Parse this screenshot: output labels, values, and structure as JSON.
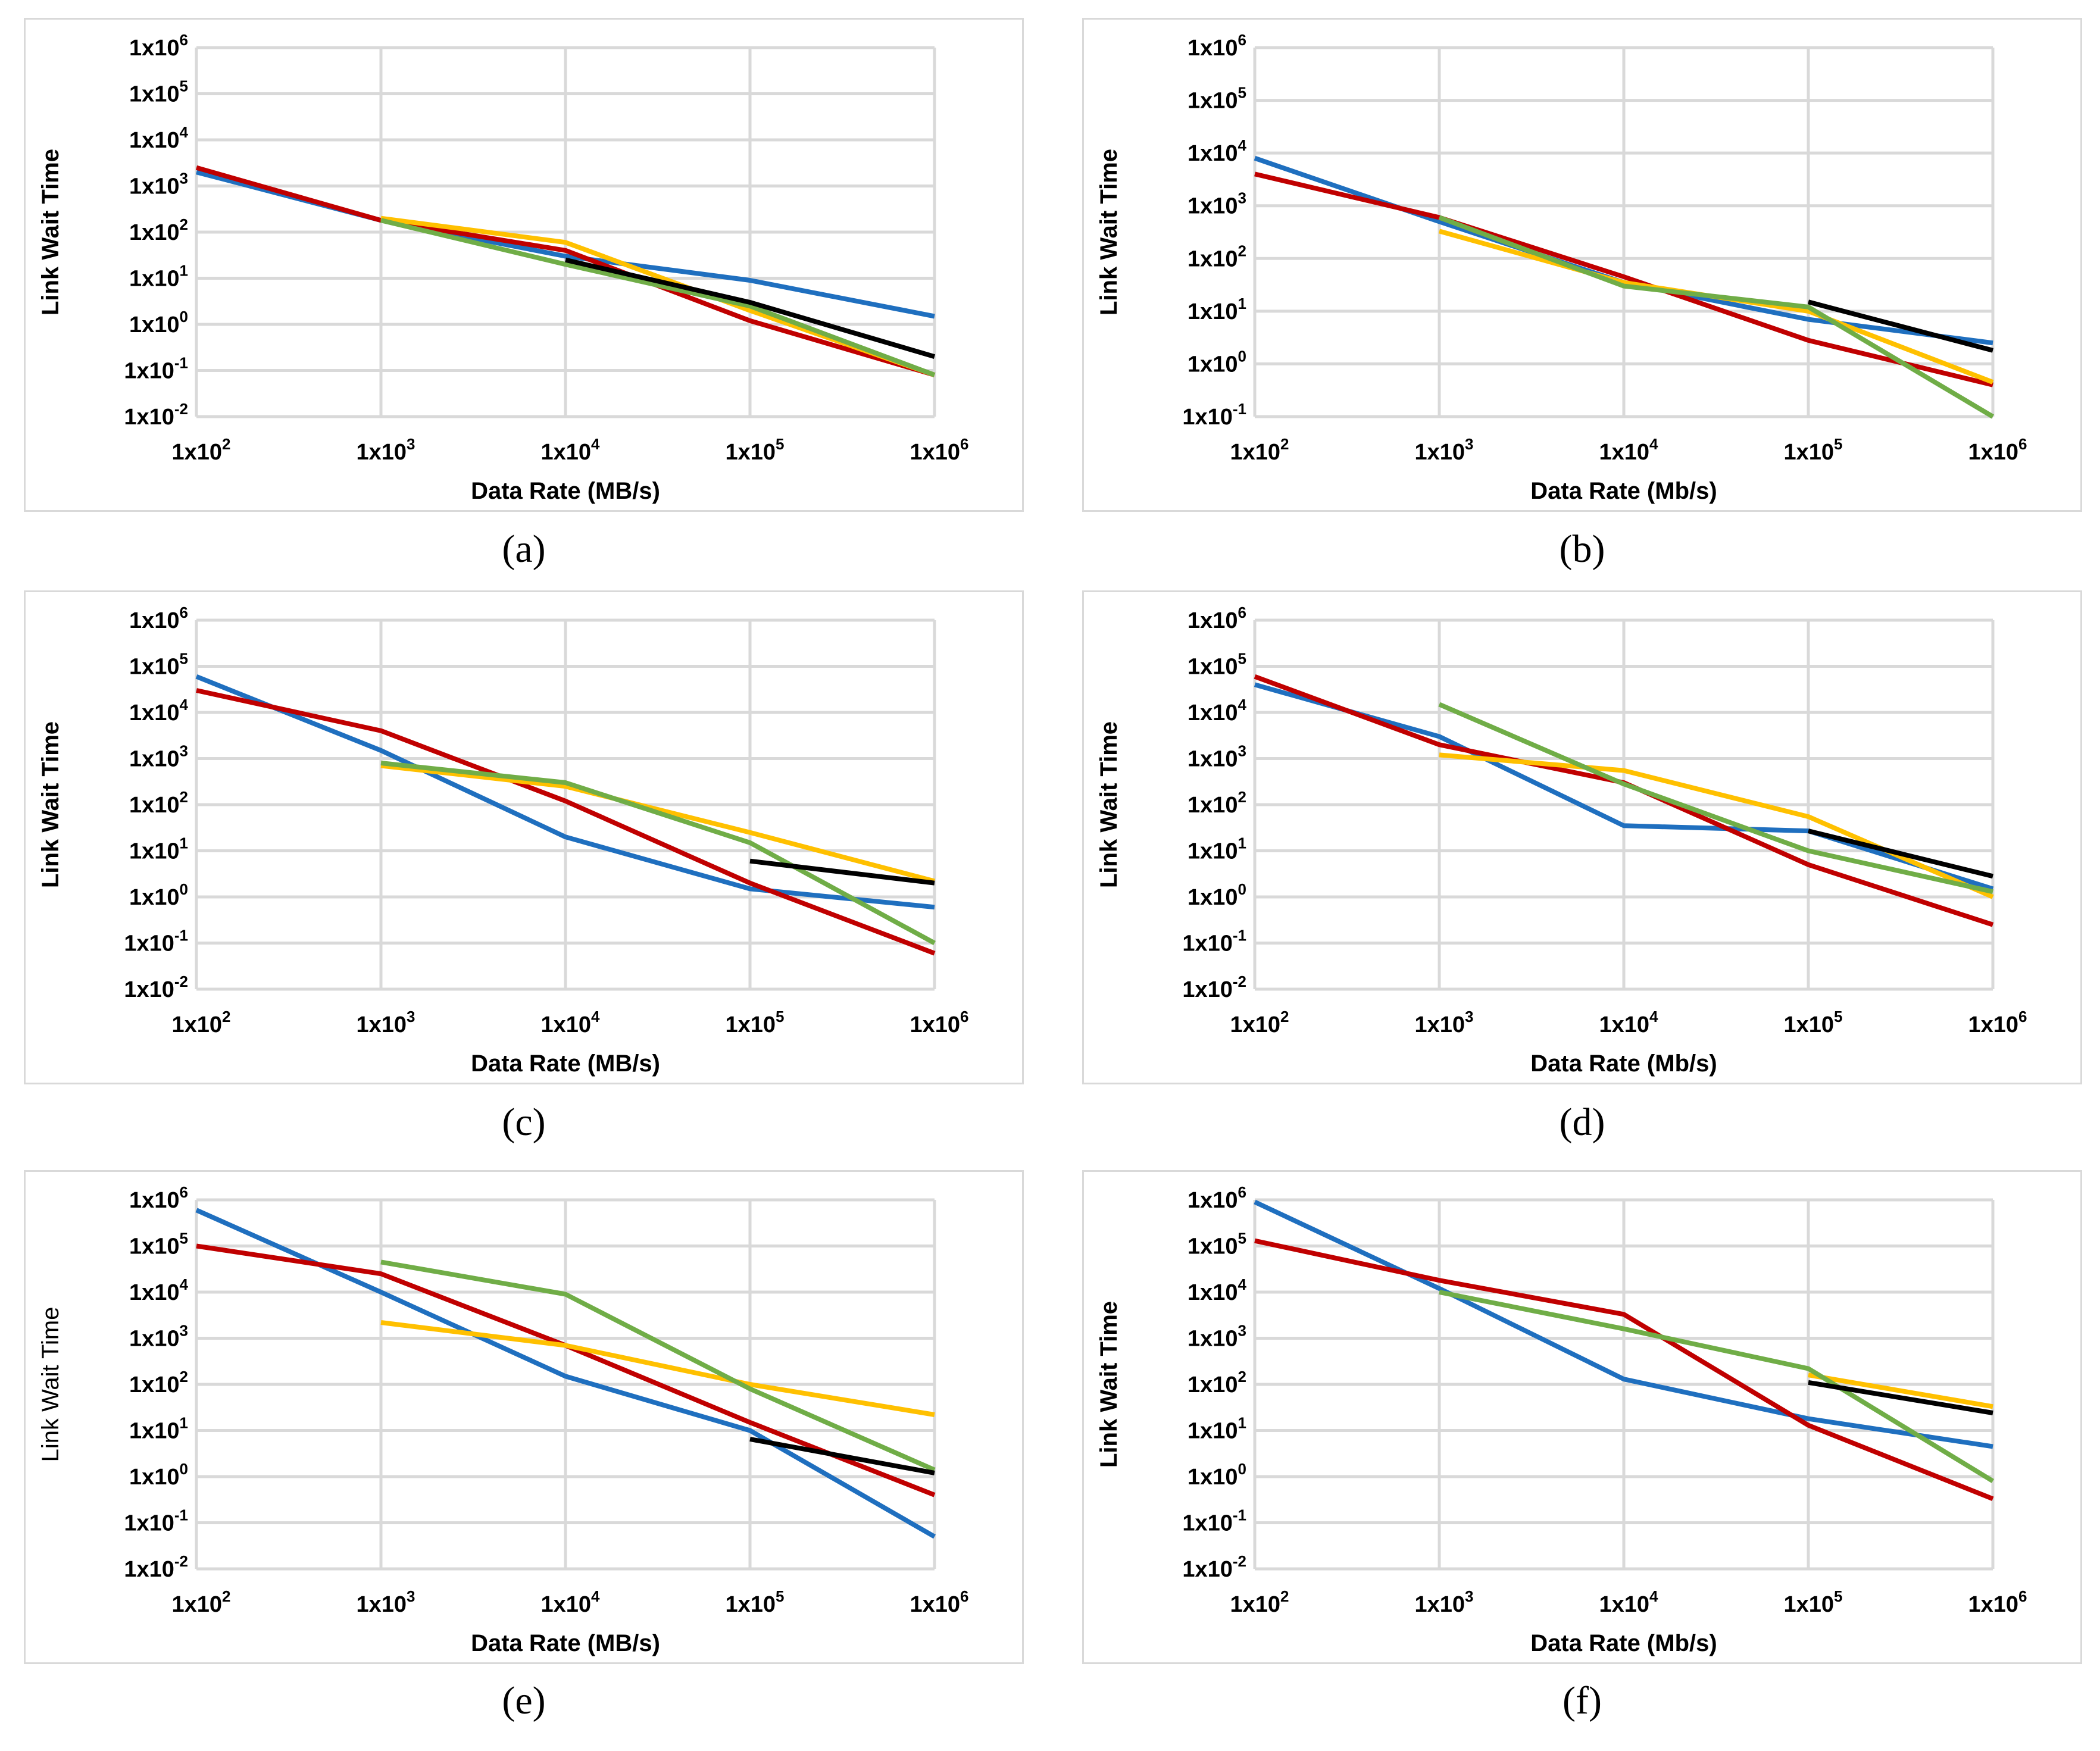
{
  "figure": {
    "series_colors": {
      "blue": "#1f6fbf",
      "red": "#c00000",
      "yellow": "#ffc000",
      "green": "#70ad47",
      "black": "#000000"
    },
    "gridline_color": "#d9d9d9",
    "frame_color": "#d9d9d9"
  },
  "chart_data": [
    {
      "panel": "a",
      "type": "line",
      "caption": "(a)",
      "xlabel": "Data Rate (MB/s)",
      "ylabel": "Link Wait Time",
      "xscale": "log",
      "yscale": "log",
      "xlim_exp": [
        2,
        6
      ],
      "ylim_exp": [
        -2,
        6
      ],
      "x_ticks": [
        {
          "base": "1x10",
          "exp": "2"
        },
        {
          "base": "1x10",
          "exp": "3"
        },
        {
          "base": "1x10",
          "exp": "4"
        },
        {
          "base": "1x10",
          "exp": "5"
        },
        {
          "base": "1x10",
          "exp": "6"
        }
      ],
      "y_ticks": [
        {
          "base": "1x10",
          "exp": "6"
        },
        {
          "base": "1x10",
          "exp": "5"
        },
        {
          "base": "1x10",
          "exp": "4"
        },
        {
          "base": "1x10",
          "exp": "3"
        },
        {
          "base": "1x10",
          "exp": "2"
        },
        {
          "base": "1x10",
          "exp": "1"
        },
        {
          "base": "1x10",
          "exp": "0"
        },
        {
          "base": "1x10",
          "exp": "-1"
        },
        {
          "base": "1x10",
          "exp": "-2"
        }
      ],
      "series": [
        {
          "color": "blue",
          "x": [
            100,
            1000,
            10000,
            100000,
            1000000
          ],
          "y": [
            2000,
            180,
            30,
            9,
            1.5
          ]
        },
        {
          "color": "red",
          "x": [
            100,
            1000,
            10000,
            100000,
            1000000
          ],
          "y": [
            2500,
            180,
            40,
            1.2,
            0.08
          ]
        },
        {
          "color": "yellow",
          "x": [
            1000,
            10000,
            100000,
            1000000
          ],
          "y": [
            200,
            60,
            2,
            0.08
          ]
        },
        {
          "color": "green",
          "x": [
            1000,
            10000,
            100000,
            1000000
          ],
          "y": [
            180,
            20,
            2.5,
            0.08
          ]
        },
        {
          "color": "black",
          "x": [
            10000,
            100000,
            1000000
          ],
          "y": [
            25,
            3,
            0.2
          ]
        }
      ]
    },
    {
      "panel": "b",
      "type": "line",
      "caption": "(b)",
      "xlabel": "Data Rate (Mb/s)",
      "ylabel": "Link Wait Time",
      "xscale": "log",
      "yscale": "log",
      "xlim_exp": [
        2,
        6
      ],
      "ylim_exp": [
        -1,
        6
      ],
      "x_ticks": [
        {
          "base": "1x10",
          "exp": "2"
        },
        {
          "base": "1x10",
          "exp": "3"
        },
        {
          "base": "1x10",
          "exp": "4"
        },
        {
          "base": "1x10",
          "exp": "5"
        },
        {
          "base": "1x10",
          "exp": "6"
        }
      ],
      "y_ticks": [
        {
          "base": "1x10",
          "exp": "6"
        },
        {
          "base": "1x10",
          "exp": "5"
        },
        {
          "base": "1x10",
          "exp": "4"
        },
        {
          "base": "1x10",
          "exp": "3"
        },
        {
          "base": "1x10",
          "exp": "2"
        },
        {
          "base": "1x10",
          "exp": "1"
        },
        {
          "base": "1x10",
          "exp": "0"
        },
        {
          "base": "1x10",
          "exp": "-1"
        }
      ],
      "series": [
        {
          "color": "blue",
          "x": [
            100,
            1000,
            10000,
            100000,
            1000000
          ],
          "y": [
            8000,
            500,
            35,
            7,
            2.5
          ]
        },
        {
          "color": "red",
          "x": [
            100,
            1000,
            10000,
            100000,
            1000000
          ],
          "y": [
            4000,
            600,
            45,
            2.8,
            0.4
          ]
        },
        {
          "color": "yellow",
          "x": [
            1000,
            10000,
            100000,
            1000000
          ],
          "y": [
            330,
            35,
            10,
            0.45
          ]
        },
        {
          "color": "green",
          "x": [
            1000,
            10000,
            100000,
            1000000
          ],
          "y": [
            600,
            30,
            12,
            0.1
          ]
        },
        {
          "color": "black",
          "x": [
            100000,
            1000000
          ],
          "y": [
            15,
            1.8
          ]
        }
      ]
    },
    {
      "panel": "c",
      "type": "line",
      "caption": "(c)",
      "xlabel": "Data Rate (MB/s)",
      "ylabel": "Link Wait Time",
      "xscale": "log",
      "yscale": "log",
      "xlim_exp": [
        2,
        6
      ],
      "ylim_exp": [
        -2,
        6
      ],
      "x_ticks": [
        {
          "base": "1x10",
          "exp": "2"
        },
        {
          "base": "1x10",
          "exp": "3"
        },
        {
          "base": "1x10",
          "exp": "4"
        },
        {
          "base": "1x10",
          "exp": "5"
        },
        {
          "base": "1x10",
          "exp": "6"
        }
      ],
      "y_ticks": [
        {
          "base": "1x10",
          "exp": "6"
        },
        {
          "base": "1x10",
          "exp": "5"
        },
        {
          "base": "1x10",
          "exp": "4"
        },
        {
          "base": "1x10",
          "exp": "3"
        },
        {
          "base": "1x10",
          "exp": "2"
        },
        {
          "base": "1x10",
          "exp": "1"
        },
        {
          "base": "1x10",
          "exp": "0"
        },
        {
          "base": "1x10",
          "exp": "-1"
        },
        {
          "base": "1x10",
          "exp": "-2"
        }
      ],
      "series": [
        {
          "color": "blue",
          "x": [
            100,
            1000,
            10000,
            100000,
            1000000
          ],
          "y": [
            60000,
            1500,
            20,
            1.5,
            0.6
          ]
        },
        {
          "color": "red",
          "x": [
            100,
            1000,
            10000,
            100000,
            1000000
          ],
          "y": [
            30000,
            4000,
            120,
            2,
            0.06
          ]
        },
        {
          "color": "yellow",
          "x": [
            1000,
            10000,
            100000,
            1000000
          ],
          "y": [
            700,
            250,
            25,
            2.2
          ]
        },
        {
          "color": "green",
          "x": [
            1000,
            10000,
            100000,
            1000000
          ],
          "y": [
            800,
            300,
            15,
            0.1
          ]
        },
        {
          "color": "black",
          "x": [
            100000,
            1000000
          ],
          "y": [
            6,
            2
          ]
        }
      ]
    },
    {
      "panel": "d",
      "type": "line",
      "caption": "(d)",
      "xlabel": "Data Rate (Mb/s)",
      "ylabel": "Link Wait Time",
      "xscale": "log",
      "yscale": "log",
      "xlim_exp": [
        2,
        6
      ],
      "ylim_exp": [
        -2,
        6
      ],
      "x_ticks": [
        {
          "base": "1x10",
          "exp": "2"
        },
        {
          "base": "1x10",
          "exp": "3"
        },
        {
          "base": "1x10",
          "exp": "4"
        },
        {
          "base": "1x10",
          "exp": "5"
        },
        {
          "base": "1x10",
          "exp": "6"
        }
      ],
      "y_ticks": [
        {
          "base": "1x10",
          "exp": "6"
        },
        {
          "base": "1x10",
          "exp": "5"
        },
        {
          "base": "1x10",
          "exp": "4"
        },
        {
          "base": "1x10",
          "exp": "3"
        },
        {
          "base": "1x10",
          "exp": "2"
        },
        {
          "base": "1x10",
          "exp": "1"
        },
        {
          "base": "1x10",
          "exp": "0"
        },
        {
          "base": "1x10",
          "exp": "-1"
        },
        {
          "base": "1x10",
          "exp": "-2"
        }
      ],
      "series": [
        {
          "color": "blue",
          "x": [
            100,
            1000,
            10000,
            100000,
            1000000
          ],
          "y": [
            40000,
            3000,
            35,
            27,
            1.5
          ]
        },
        {
          "color": "red",
          "x": [
            100,
            1000,
            10000,
            100000,
            1000000
          ],
          "y": [
            60000,
            2000,
            300,
            5,
            0.25
          ]
        },
        {
          "color": "yellow",
          "x": [
            1000,
            10000,
            100000,
            1000000
          ],
          "y": [
            1200,
            550,
            55,
            1
          ]
        },
        {
          "color": "green",
          "x": [
            1000,
            10000,
            100000,
            1000000
          ],
          "y": [
            15000,
            280,
            10,
            1.3
          ]
        },
        {
          "color": "black",
          "x": [
            100000,
            1000000
          ],
          "y": [
            27,
            2.8
          ]
        }
      ]
    },
    {
      "panel": "e",
      "type": "line",
      "caption": "(e)",
      "xlabel": "Data Rate (MB/s)",
      "ylabel": "Link Wait Time",
      "ylabel_weight": "normal",
      "xscale": "log",
      "yscale": "log",
      "xlim_exp": [
        2,
        6
      ],
      "ylim_exp": [
        -2,
        6
      ],
      "x_ticks": [
        {
          "base": "1x10",
          "exp": "2"
        },
        {
          "base": "1x10",
          "exp": "3"
        },
        {
          "base": "1x10",
          "exp": "4"
        },
        {
          "base": "1x10",
          "exp": "5"
        },
        {
          "base": "1x10",
          "exp": "6"
        }
      ],
      "y_ticks": [
        {
          "base": "1x10",
          "exp": "6"
        },
        {
          "base": "1x10",
          "exp": "5"
        },
        {
          "base": "1x10",
          "exp": "4"
        },
        {
          "base": "1x10",
          "exp": "3"
        },
        {
          "base": "1x10",
          "exp": "2"
        },
        {
          "base": "1x10",
          "exp": "1"
        },
        {
          "base": "1x10",
          "exp": "0"
        },
        {
          "base": "1x10",
          "exp": "-1"
        },
        {
          "base": "1x10",
          "exp": "-2"
        }
      ],
      "series": [
        {
          "color": "blue",
          "x": [
            100,
            1000,
            10000,
            100000,
            1000000
          ],
          "y": [
            600000,
            10000,
            150,
            10,
            0.05
          ]
        },
        {
          "color": "red",
          "x": [
            100,
            1000,
            10000,
            100000,
            1000000
          ],
          "y": [
            100000,
            25000,
            700,
            15,
            0.4
          ]
        },
        {
          "color": "yellow",
          "x": [
            1000,
            10000,
            100000,
            1000000
          ],
          "y": [
            2200,
            700,
            100,
            22
          ]
        },
        {
          "color": "green",
          "x": [
            1000,
            10000,
            100000,
            1000000
          ],
          "y": [
            45000,
            9000,
            80,
            1.4
          ]
        },
        {
          "color": "black",
          "x": [
            100000,
            1000000
          ],
          "y": [
            6.5,
            1.2
          ]
        }
      ]
    },
    {
      "panel": "f",
      "type": "line",
      "caption": "(f)",
      "xlabel": "Data Rate (Mb/s)",
      "ylabel": "Link Wait Time",
      "xscale": "log",
      "yscale": "log",
      "xlim_exp": [
        2,
        6
      ],
      "ylim_exp": [
        -2,
        6
      ],
      "x_ticks": [
        {
          "base": "1x10",
          "exp": "2"
        },
        {
          "base": "1x10",
          "exp": "3"
        },
        {
          "base": "1x10",
          "exp": "4"
        },
        {
          "base": "1x10",
          "exp": "5"
        },
        {
          "base": "1x10",
          "exp": "6"
        }
      ],
      "y_ticks": [
        {
          "base": "1x10",
          "exp": "6"
        },
        {
          "base": "1x10",
          "exp": "5"
        },
        {
          "base": "1x10",
          "exp": "4"
        },
        {
          "base": "1x10",
          "exp": "3"
        },
        {
          "base": "1x10",
          "exp": "2"
        },
        {
          "base": "1x10",
          "exp": "1"
        },
        {
          "base": "1x10",
          "exp": "0"
        },
        {
          "base": "1x10",
          "exp": "-1"
        },
        {
          "base": "1x10",
          "exp": "-2"
        }
      ],
      "series": [
        {
          "color": "blue",
          "x": [
            100,
            1000,
            10000,
            100000,
            1000000
          ],
          "y": [
            900000,
            12000,
            130,
            18,
            4.5
          ]
        },
        {
          "color": "red",
          "x": [
            100,
            1000,
            10000,
            100000,
            1000000
          ],
          "y": [
            130000,
            18000,
            3300,
            13,
            0.33
          ]
        },
        {
          "color": "yellow",
          "x": [
            100000,
            1000000
          ],
          "y": [
            160,
            33
          ]
        },
        {
          "color": "green",
          "x": [
            1000,
            10000,
            100000,
            1000000
          ],
          "y": [
            10000,
            1600,
            220,
            0.8
          ]
        },
        {
          "color": "black",
          "x": [
            100000,
            1000000
          ],
          "y": [
            110,
            24
          ]
        }
      ]
    }
  ]
}
